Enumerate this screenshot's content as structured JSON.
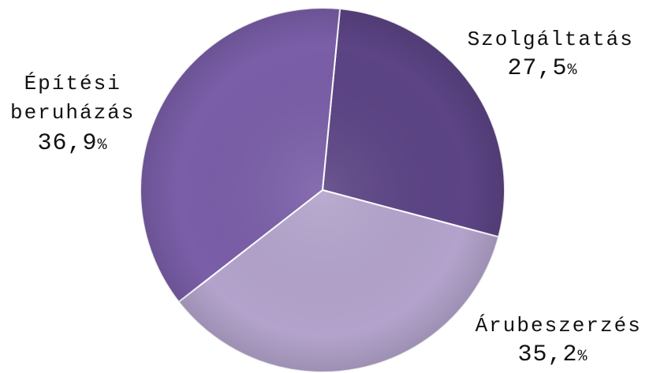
{
  "chart_data": {
    "type": "pie",
    "title": "",
    "slices": [
      {
        "name": "Szolgáltatás",
        "value": 27.5,
        "value_label": "27,5",
        "pct_symbol": "%",
        "color": "#5c4485"
      },
      {
        "name": "Árubeszerzés",
        "value": 35.2,
        "value_label": "35,2",
        "pct_symbol": "%",
        "color": "#b3a3cc"
      },
      {
        "name": "Építési beruházás",
        "name_lines": [
          "Építési",
          "beruházás"
        ],
        "value": 36.9,
        "value_label": "36,9",
        "pct_symbol": "%",
        "color": "#7a5ea8"
      }
    ],
    "legend": "none"
  }
}
